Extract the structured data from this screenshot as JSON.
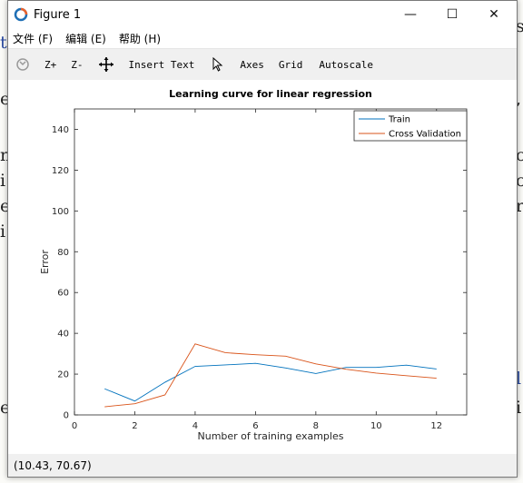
{
  "window": {
    "title": "Figure 1",
    "controls": {
      "minimize": "—",
      "maximize": "☐",
      "close": "✕"
    }
  },
  "menu": [
    {
      "label": "文件 (F)"
    },
    {
      "label": "编辑 (E)"
    },
    {
      "label": "帮助 (H)"
    }
  ],
  "toolbar": {
    "zoom_in": "Z+",
    "zoom_out": "Z-",
    "insert_text": "Insert Text",
    "axes": "Axes",
    "grid": "Grid",
    "autoscale": "Autoscale"
  },
  "status": {
    "coords": "(10.43, 70.67)"
  },
  "chart_data": {
    "type": "line",
    "title": "Learning curve for linear regression",
    "xlabel": "Number of training examples",
    "ylabel": "Error",
    "xlim": [
      0,
      13
    ],
    "ylim": [
      0,
      150
    ],
    "xticks": [
      0,
      2,
      4,
      6,
      8,
      10,
      12
    ],
    "yticks": [
      0,
      20,
      40,
      60,
      80,
      100,
      120,
      140
    ],
    "grid": false,
    "legend_position": "top-right",
    "series": [
      {
        "name": "Train",
        "color": "#0072BD",
        "x": [
          1,
          2,
          3,
          4,
          5,
          6,
          7,
          8,
          9,
          10,
          11,
          12
        ],
        "values": [
          12.8,
          6.8,
          16.0,
          23.8,
          24.5,
          25.3,
          23.0,
          20.3,
          23.3,
          23.3,
          24.4,
          22.5
        ]
      },
      {
        "name": "Cross Validation",
        "color": "#D95319",
        "x": [
          1,
          2,
          3,
          4,
          5,
          6,
          7,
          8,
          9,
          10,
          11,
          12
        ],
        "values": [
          4.0,
          5.5,
          9.8,
          34.8,
          30.5,
          29.5,
          28.8,
          25.0,
          22.4,
          20.5,
          19.2,
          18.0
        ]
      }
    ]
  }
}
